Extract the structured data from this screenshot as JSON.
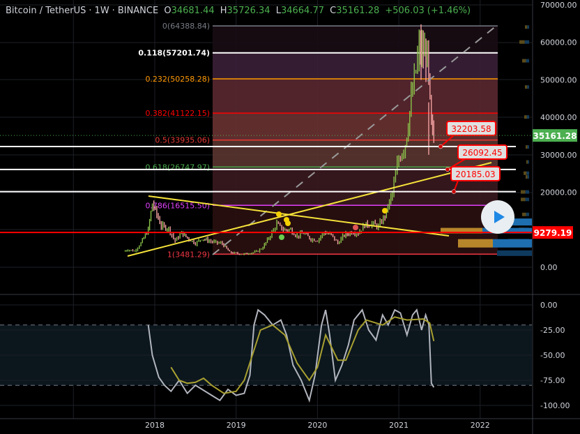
{
  "header": {
    "symbol": "Bitcoin / TetherUS",
    "interval": "1W",
    "exchange": "BINANCE",
    "open_label": "O",
    "open": "34681.44",
    "high_label": "H",
    "high": "35726.34",
    "low_label": "L",
    "low": "34664.77",
    "close_label": "C",
    "close": "35161.28",
    "change": "+506.03",
    "change_pct": "(+1.46%)"
  },
  "colors": {
    "up": "#8bc34a",
    "down": "#f2a0a0",
    "last_price": "#4caf50",
    "alert": "#ff0000",
    "trendline": "#f5e23a"
  },
  "chart_data": {
    "type": "line",
    "title": "Bitcoin / TetherUS 1W BINANCE",
    "price_axis": {
      "ylim": [
        0,
        70000
      ],
      "ticks": [
        "70000.00",
        "60000.00",
        "50000.00",
        "40000.00",
        "30000.00",
        "20000.00",
        "0.00"
      ]
    },
    "time_axis": {
      "ticks": [
        "2018",
        "2019",
        "2020",
        "2021",
        "2022"
      ]
    },
    "price_closes_monthly": {
      "x": [
        2017.62,
        2017.67,
        2017.75,
        2017.83,
        2017.92,
        2017.97,
        2018.08,
        2018.17,
        2018.25,
        2018.33,
        2018.42,
        2018.5,
        2018.58,
        2018.67,
        2018.75,
        2018.83,
        2018.92,
        2019.0,
        2019.08,
        2019.17,
        2019.25,
        2019.33,
        2019.42,
        2019.5,
        2019.58,
        2019.67,
        2019.75,
        2019.83,
        2019.92,
        2020.0,
        2020.08,
        2020.17,
        2020.25,
        2020.33,
        2020.42,
        2020.5,
        2020.58,
        2020.67,
        2020.75,
        2020.83,
        2020.92,
        2021.0,
        2021.08,
        2021.17,
        2021.25,
        2021.3,
        2021.35,
        2021.4,
        2021.43
      ],
      "close": [
        4200,
        4700,
        4300,
        6400,
        10000,
        17000,
        11000,
        10300,
        7000,
        9200,
        7500,
        6400,
        7700,
        7000,
        6600,
        6300,
        4000,
        3700,
        3450,
        3800,
        4100,
        5300,
        8500,
        11500,
        10000,
        10000,
        8300,
        9100,
        7500,
        7200,
        9300,
        8600,
        6400,
        8600,
        9400,
        9100,
        11300,
        11600,
        10800,
        13800,
        19700,
        29000,
        33000,
        47000,
        58000,
        57000,
        56000,
        37000,
        35161.28
      ]
    },
    "fib_retracement": [
      {
        "ratio": "0",
        "price": "64388.84",
        "label": "0(64388.84)",
        "color": "#787b86",
        "value": 64388.84
      },
      {
        "ratio": "0.118",
        "price": "57201.74",
        "label": "0.118(57201.74)",
        "color": "#ffffff",
        "value": 57201.74
      },
      {
        "ratio": "0.232",
        "price": "50258.28",
        "label": "0.232(50258.28)",
        "color": "#ff9800",
        "value": 50258.28
      },
      {
        "ratio": "0.382",
        "price": "41122.15",
        "label": "0.382(41122.15)",
        "color": "#ff0000",
        "value": 41122.15
      },
      {
        "ratio": "0.5",
        "price": "33935.06",
        "label": "0.5(33935.06)",
        "color": "#e53935",
        "value": 33935.06
      },
      {
        "ratio": "0.618",
        "price": "26747.97",
        "label": "0.618(26747.97)",
        "color": "#4caf50",
        "value": 26747.97
      },
      {
        "ratio": "0.786",
        "price": "16515.50",
        "label": "0.786(16515.50)",
        "color": "#e040fb",
        "value": 16515.5
      },
      {
        "ratio": "1",
        "price": "3481.29",
        "label": "1(3481.29)",
        "color": "#f23645",
        "value": 3481.29
      }
    ],
    "horizontal_lines": [
      {
        "label": "32203.58",
        "value": 32203.58
      },
      {
        "label": "26092.45",
        "value": 26092.45
      },
      {
        "label": "20185.03",
        "value": 20185.03
      }
    ],
    "red_line": {
      "label": "9279.19",
      "value": 9279.19
    },
    "last_price": {
      "label": "35161.28",
      "value": 35161.28
    },
    "oscillator": {
      "ylim": [
        -100,
        0
      ],
      "ticks": [
        "0.00",
        "-25.00",
        "-50.00",
        "-75.00",
        "-100.00"
      ],
      "bands": [
        -20,
        -80
      ],
      "main": {
        "x": [
          2017.92,
          2017.97,
          2018.05,
          2018.12,
          2018.2,
          2018.3,
          2018.4,
          2018.5,
          2018.6,
          2018.7,
          2018.8,
          2018.9,
          2019.0,
          2019.1,
          2019.17,
          2019.22,
          2019.27,
          2019.35,
          2019.45,
          2019.55,
          2019.62,
          2019.7,
          2019.8,
          2019.9,
          2019.97,
          2020.05,
          2020.1,
          2020.15,
          2020.22,
          2020.3,
          2020.38,
          2020.45,
          2020.55,
          2020.63,
          2020.72,
          2020.8,
          2020.87,
          2020.95,
          2021.02,
          2021.1,
          2021.17,
          2021.22,
          2021.28,
          2021.33,
          2021.37,
          2021.4,
          2021.43
        ],
        "values": [
          -20,
          -50,
          -72,
          -80,
          -86,
          -75,
          -88,
          -80,
          -85,
          -90,
          -95,
          -84,
          -90,
          -88,
          -70,
          -20,
          -5,
          -10,
          -20,
          -15,
          -30,
          -60,
          -75,
          -95,
          -70,
          -20,
          -5,
          -30,
          -75,
          -60,
          -40,
          -15,
          -5,
          -25,
          -35,
          -10,
          -20,
          -5,
          -8,
          -30,
          -10,
          -5,
          -25,
          -10,
          -20,
          -78,
          -82
        ]
      },
      "signal": {
        "x": [
          2018.2,
          2018.3,
          2018.4,
          2018.5,
          2018.6,
          2018.7,
          2018.85,
          2019.0,
          2019.1,
          2019.2,
          2019.3,
          2019.45,
          2019.6,
          2019.75,
          2019.9,
          2020.0,
          2020.1,
          2020.25,
          2020.35,
          2020.5,
          2020.6,
          2020.8,
          2020.95,
          2021.1,
          2021.3,
          2021.38,
          2021.43
        ],
        "values": [
          -62,
          -75,
          -78,
          -77,
          -73,
          -80,
          -88,
          -86,
          -75,
          -50,
          -25,
          -20,
          -30,
          -58,
          -75,
          -62,
          -30,
          -55,
          -55,
          -25,
          -15,
          -20,
          -12,
          -15,
          -14,
          -18,
          -36
        ]
      }
    }
  }
}
